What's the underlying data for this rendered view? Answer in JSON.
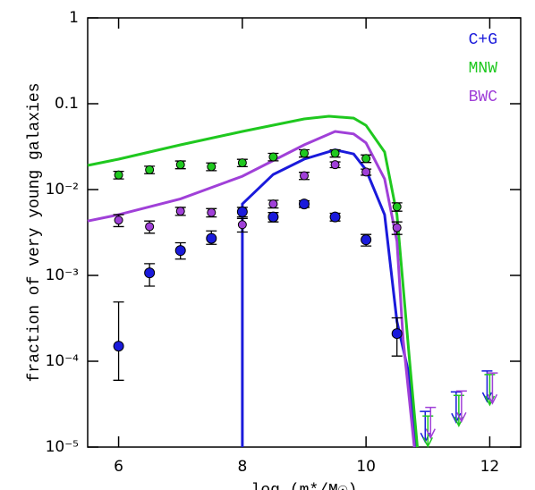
{
  "chart_data": {
    "type": "scatter",
    "xlabel": "log (m*/M☉)",
    "ylabel": "fraction of very young galaxies",
    "xlim": [
      5.5,
      12.5
    ],
    "xticks": [
      6,
      8,
      10,
      12
    ],
    "ylim": [
      1e-05,
      1
    ],
    "ylog": true,
    "yticks": [
      1,
      0.1,
      {
        "value": 0.01,
        "label": "10⁻²"
      },
      {
        "value": 0.001,
        "label": "10⁻³"
      },
      {
        "value": 0.0001,
        "label": "10⁻⁴"
      },
      {
        "value": 1e-05,
        "label": "10⁻⁵"
      }
    ],
    "legend": "upper right",
    "series": [
      {
        "name": "C+G",
        "color": "#1a1adb",
        "x": [
          6,
          6.5,
          7,
          7.5,
          8,
          8.5,
          9,
          9.5,
          10,
          10.5
        ],
        "values": [
          0.00015,
          0.00107,
          0.00195,
          0.0027,
          0.0055,
          0.0048,
          0.0068,
          0.0048,
          0.0026,
          0.00021
        ],
        "err_minus": [
          9e-05,
          0.00032,
          0.0004,
          0.0004,
          0.0007,
          0.0006,
          0.0006,
          0.0005,
          0.0004,
          9.5e-05
        ],
        "err_plus": [
          0.00034,
          0.0003,
          0.00045,
          0.0006,
          0.0007,
          0.0006,
          0.0006,
          0.0005,
          0.0004,
          0.00011
        ],
        "line_x": [
          8,
          8,
          8.5,
          9,
          9.5,
          9.8,
          10,
          10.3,
          10.5,
          10.7,
          10.8
        ],
        "line_y": [
          1e-05,
          0.0068,
          0.015,
          0.0226,
          0.029,
          0.026,
          0.017,
          0.0051,
          0.00029,
          6.8e-05,
          1e-05
        ],
        "limits_x": [
          11,
          11.5,
          12
        ],
        "limits": [
          2.6e-05,
          4.4e-05,
          7.7e-05
        ]
      },
      {
        "name": "MNW",
        "color": "#1fc81f",
        "x": [
          6,
          6.5,
          7,
          7.5,
          8,
          8.5,
          9,
          9.5,
          10,
          10.5
        ],
        "values": [
          0.0148,
          0.017,
          0.0195,
          0.0185,
          0.0205,
          0.024,
          0.0265,
          0.0265,
          0.023,
          0.0063
        ],
        "err_minus": [
          0.0015,
          0.0017,
          0.002,
          0.0019,
          0.002,
          0.0024,
          0.0026,
          0.0026,
          0.0023,
          0.0007
        ],
        "err_plus": [
          0.0015,
          0.0017,
          0.002,
          0.0019,
          0.002,
          0.0024,
          0.0026,
          0.0026,
          0.0023,
          0.0007
        ],
        "line_x": [
          5.5,
          6,
          7,
          8,
          9,
          9.4,
          9.8,
          10,
          10.3,
          10.5,
          10.7,
          10.83
        ],
        "line_y": [
          0.0191,
          0.0226,
          0.0332,
          0.0475,
          0.0665,
          0.0715,
          0.068,
          0.056,
          0.0274,
          0.0051,
          0.00011,
          1e-05
        ],
        "limits_x": [
          11,
          11.5,
          12
        ],
        "limits": [
          2.3e-05,
          4e-05,
          7e-05
        ]
      },
      {
        "name": "BWC",
        "color": "#a040d8",
        "x": [
          6,
          6.5,
          7,
          7.5,
          8,
          8.5,
          9,
          9.5,
          10,
          10.5
        ],
        "values": [
          0.0044,
          0.0037,
          0.0056,
          0.0054,
          0.0039,
          0.0068,
          0.0145,
          0.0195,
          0.016,
          0.0036
        ],
        "err_minus": [
          0.0007,
          0.0006,
          0.0006,
          0.0006,
          0.0007,
          0.0007,
          0.0014,
          0.0015,
          0.0013,
          0.0006
        ],
        "err_plus": [
          0.0007,
          0.0006,
          0.0006,
          0.0006,
          0.0007,
          0.0007,
          0.0014,
          0.0015,
          0.0013,
          0.0006
        ],
        "line_x": [
          5.5,
          6,
          7,
          8,
          9,
          9.5,
          9.8,
          10,
          10.3,
          10.5,
          10.6,
          10.78
        ],
        "line_y": [
          0.0043,
          0.0051,
          0.0078,
          0.0143,
          0.0332,
          0.0475,
          0.0445,
          0.035,
          0.0133,
          0.0025,
          0.00018,
          1e-05
        ],
        "limits_x": [
          11,
          11.5,
          12
        ],
        "limits": [
          2.9e-05,
          4.5e-05,
          7.3e-05
        ]
      }
    ]
  }
}
